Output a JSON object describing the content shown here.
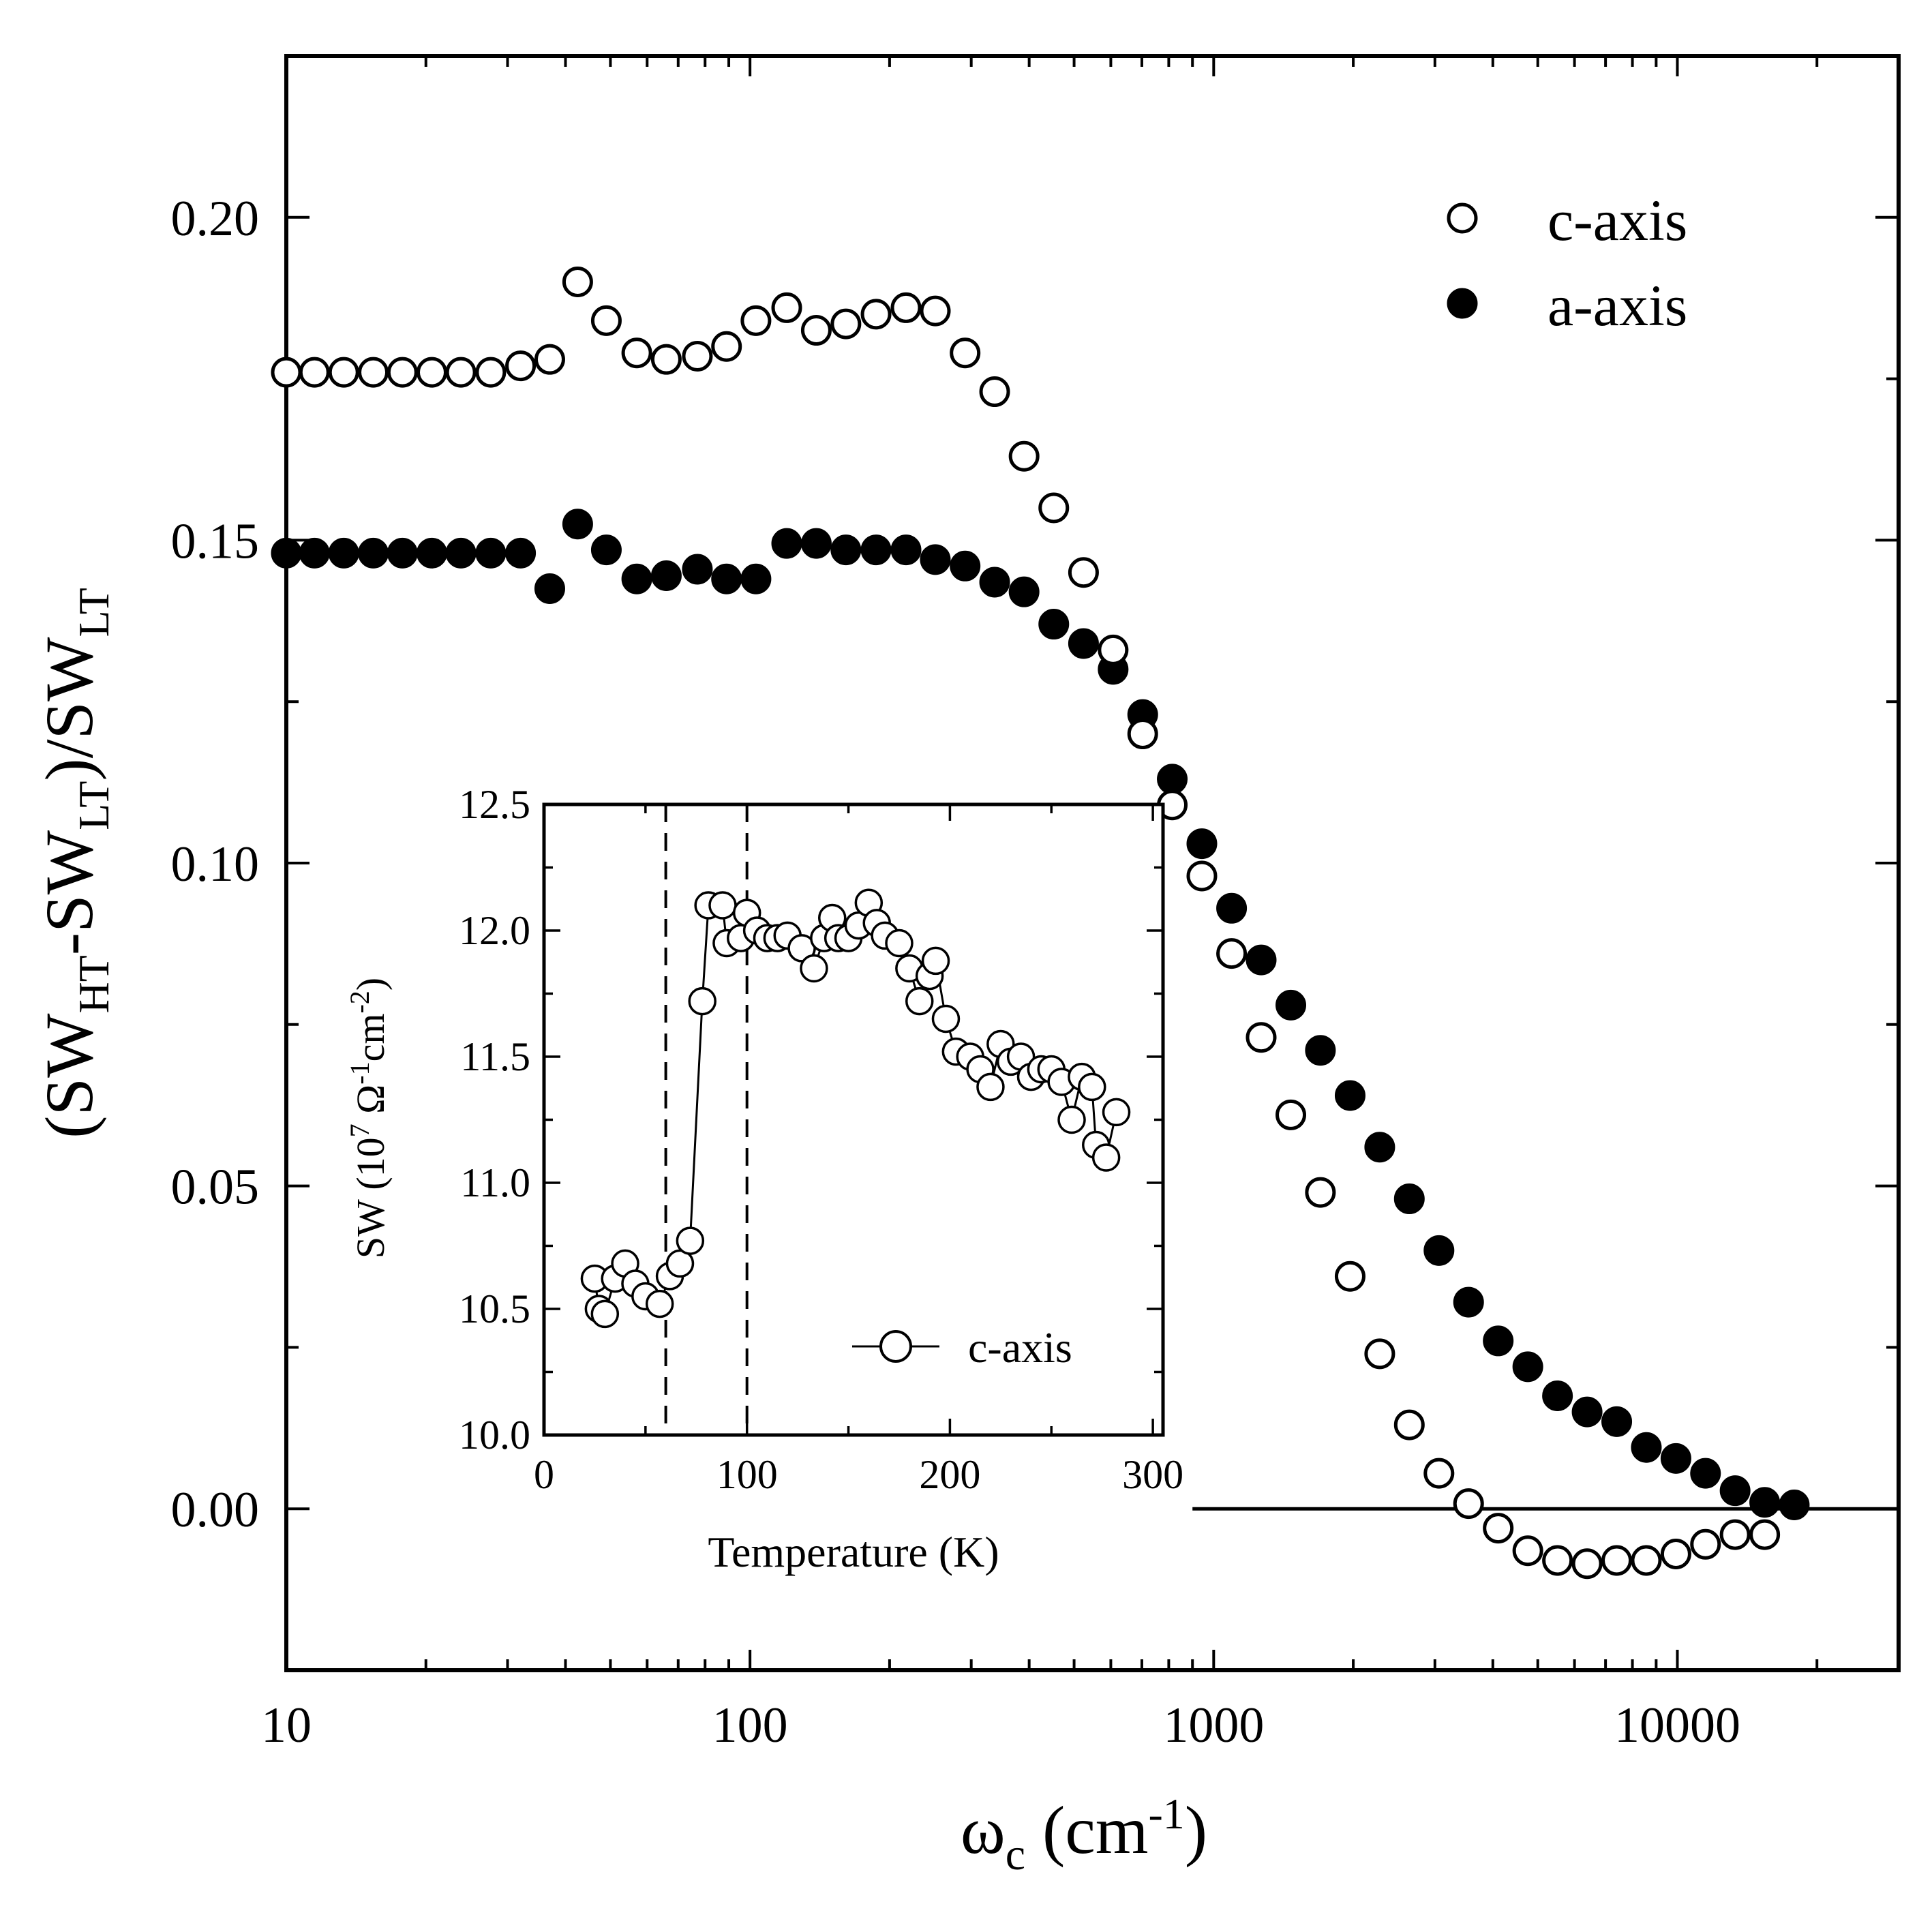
{
  "chart_data": [
    {
      "type": "scatter",
      "title": "",
      "xlabel": {
        "main": "ω",
        "sub": "c",
        "unit": " (cm",
        "sup": "-1",
        "close": ")"
      },
      "ylabel": {
        "p1": "(SW",
        "s1": "HT",
        "p2": "-SW",
        "s2": "LT",
        "p3": ")/SW",
        "s3": "LT"
      },
      "xscale": "log",
      "xlim": [
        10,
        30000
      ],
      "ylim": [
        -0.025,
        0.225
      ],
      "xticks": [
        10,
        100,
        1000,
        10000
      ],
      "xtick_labels": [
        "10",
        "100",
        "1000",
        "10000"
      ],
      "yticks": [
        0.0,
        0.05,
        0.1,
        0.15,
        0.2
      ],
      "ytick_labels": [
        "0.00",
        "0.05",
        "0.10",
        "0.15",
        "0.20"
      ],
      "legend_position": "top-right",
      "reference_line": {
        "y": 0,
        "x_from": 900,
        "x_to": 30000
      },
      "series": [
        {
          "name": "c-axis",
          "marker": "open-circle",
          "points": [
            [
              10,
              0.176
            ],
            [
              11.5,
              0.176
            ],
            [
              13.3,
              0.176
            ],
            [
              15.4,
              0.176
            ],
            [
              17.8,
              0.176
            ],
            [
              20.6,
              0.176
            ],
            [
              23.8,
              0.176
            ],
            [
              27.6,
              0.176
            ],
            [
              32,
              0.177
            ],
            [
              37,
              0.178
            ],
            [
              42.5,
              0.19
            ],
            [
              49,
              0.184
            ],
            [
              57,
              0.179
            ],
            [
              66,
              0.178
            ],
            [
              77,
              0.1785
            ],
            [
              89,
              0.18
            ],
            [
              103,
              0.184
            ],
            [
              120,
              0.186
            ],
            [
              139,
              0.1825
            ],
            [
              161,
              0.1835
            ],
            [
              187,
              0.185
            ],
            [
              217,
              0.186
            ],
            [
              251,
              0.1855
            ],
            [
              291,
              0.179
            ],
            [
              337,
              0.173
            ],
            [
              390,
              0.163
            ],
            [
              452,
              0.155
            ],
            [
              524,
              0.145
            ],
            [
              607,
              0.133
            ],
            [
              703,
              0.12
            ],
            [
              814,
              0.109
            ],
            [
              943,
              0.098
            ],
            [
              1093,
              0.086
            ],
            [
              1266,
              0.073
            ],
            [
              1467,
              0.061
            ],
            [
              1699,
              0.049
            ],
            [
              1969,
              0.036
            ],
            [
              2281,
              0.024
            ],
            [
              2642,
              0.013
            ],
            [
              3061,
              0.0055
            ],
            [
              3546,
              0.0008
            ],
            [
              4108,
              -0.003
            ],
            [
              4759,
              -0.0065
            ],
            [
              5514,
              -0.008
            ],
            [
              6388,
              -0.0085
            ],
            [
              7400,
              -0.008
            ],
            [
              8572,
              -0.008
            ],
            [
              9930,
              -0.007
            ],
            [
              11500,
              -0.0055
            ],
            [
              13320,
              -0.004
            ],
            [
              15430,
              -0.004
            ]
          ]
        },
        {
          "name": "a-axis",
          "marker": "filled-circle",
          "points": [
            [
              10,
              0.148
            ],
            [
              11.5,
              0.148
            ],
            [
              13.3,
              0.148
            ],
            [
              15.4,
              0.148
            ],
            [
              17.8,
              0.148
            ],
            [
              20.6,
              0.148
            ],
            [
              23.8,
              0.148
            ],
            [
              27.6,
              0.148
            ],
            [
              32,
              0.148
            ],
            [
              37,
              0.1425
            ],
            [
              42.5,
              0.1525
            ],
            [
              49,
              0.1485
            ],
            [
              57,
              0.144
            ],
            [
              66,
              0.1445
            ],
            [
              77,
              0.1455
            ],
            [
              89,
              0.144
            ],
            [
              103,
              0.144
            ],
            [
              120,
              0.1495
            ],
            [
              139,
              0.1495
            ],
            [
              161,
              0.1485
            ],
            [
              187,
              0.1485
            ],
            [
              217,
              0.1485
            ],
            [
              251,
              0.147
            ],
            [
              291,
              0.146
            ],
            [
              337,
              0.1435
            ],
            [
              390,
              0.142
            ],
            [
              452,
              0.137
            ],
            [
              524,
              0.134
            ],
            [
              607,
              0.13
            ],
            [
              703,
              0.123
            ],
            [
              814,
              0.113
            ],
            [
              943,
              0.103
            ],
            [
              1093,
              0.093
            ],
            [
              1266,
              0.085
            ],
            [
              1467,
              0.078
            ],
            [
              1699,
              0.071
            ],
            [
              1969,
              0.064
            ],
            [
              2281,
              0.056
            ],
            [
              2642,
              0.048
            ],
            [
              3061,
              0.04
            ],
            [
              3546,
              0.032
            ],
            [
              4108,
              0.026
            ],
            [
              4759,
              0.022
            ],
            [
              5514,
              0.0175
            ],
            [
              6388,
              0.015
            ],
            [
              7400,
              0.0135
            ],
            [
              8572,
              0.0095
            ],
            [
              9930,
              0.0078
            ],
            [
              11500,
              0.0055
            ],
            [
              13320,
              0.0028
            ],
            [
              15430,
              0.001
            ],
            [
              17870,
              0.0006
            ]
          ]
        }
      ]
    },
    {
      "type": "line",
      "title": "",
      "xlabel": "Temperature (K)",
      "ylabel": {
        "p1": "SW (10",
        "sup1": "7",
        "p2": " Ω",
        "sup2": "-1",
        "p3": "cm",
        "sup3": "-2",
        "p4": ")"
      },
      "xlim": [
        0,
        305
      ],
      "ylim": [
        10.0,
        12.5
      ],
      "xticks": [
        0,
        100,
        200,
        300
      ],
      "xtick_labels": [
        "0",
        "100",
        "200",
        "300"
      ],
      "yticks": [
        10.0,
        10.5,
        11.0,
        11.5,
        12.0,
        12.5
      ],
      "ytick_labels": [
        "10.0",
        "10.5",
        "11.0",
        "11.5",
        "12.0",
        "12.5"
      ],
      "vertical_dashed_lines": [
        60,
        100
      ],
      "legend_position": "bottom-right",
      "series": [
        {
          "name": "c-axis",
          "marker": "open-circle-line",
          "points": [
            [
              25,
              10.62
            ],
            [
              27,
              10.5
            ],
            [
              30,
              10.48
            ],
            [
              35,
              10.62
            ],
            [
              40,
              10.68
            ],
            [
              45,
              10.6
            ],
            [
              50,
              10.55
            ],
            [
              57,
              10.52
            ],
            [
              62,
              10.63
            ],
            [
              67,
              10.68
            ],
            [
              72,
              10.77
            ],
            [
              78,
              11.72
            ],
            [
              81,
              12.1
            ],
            [
              88,
              12.1
            ],
            [
              90,
              11.95
            ],
            [
              97,
              11.97
            ],
            [
              100,
              12.07
            ],
            [
              105,
              12.0
            ],
            [
              110,
              11.97
            ],
            [
              115,
              11.97
            ],
            [
              120,
              11.98
            ],
            [
              127,
              11.93
            ],
            [
              133,
              11.85
            ],
            [
              138,
              11.97
            ],
            [
              142,
              12.05
            ],
            [
              145,
              11.97
            ],
            [
              150,
              11.97
            ],
            [
              155,
              12.02
            ],
            [
              160,
              12.11
            ],
            [
              164,
              12.03
            ],
            [
              168,
              11.98
            ],
            [
              175,
              11.95
            ],
            [
              180,
              11.85
            ],
            [
              185,
              11.72
            ],
            [
              190,
              11.82
            ],
            [
              193,
              11.88
            ],
            [
              198,
              11.65
            ],
            [
              203,
              11.52
            ],
            [
              210,
              11.5
            ],
            [
              215,
              11.45
            ],
            [
              220,
              11.38
            ],
            [
              225,
              11.55
            ],
            [
              230,
              11.48
            ],
            [
              235,
              11.5
            ],
            [
              240,
              11.42
            ],
            [
              245,
              11.45
            ],
            [
              250,
              11.45
            ],
            [
              255,
              11.4
            ],
            [
              260,
              11.25
            ],
            [
              265,
              11.42
            ],
            [
              270,
              11.38
            ],
            [
              272,
              11.15
            ],
            [
              277,
              11.1
            ],
            [
              282,
              11.28
            ]
          ]
        }
      ]
    }
  ]
}
